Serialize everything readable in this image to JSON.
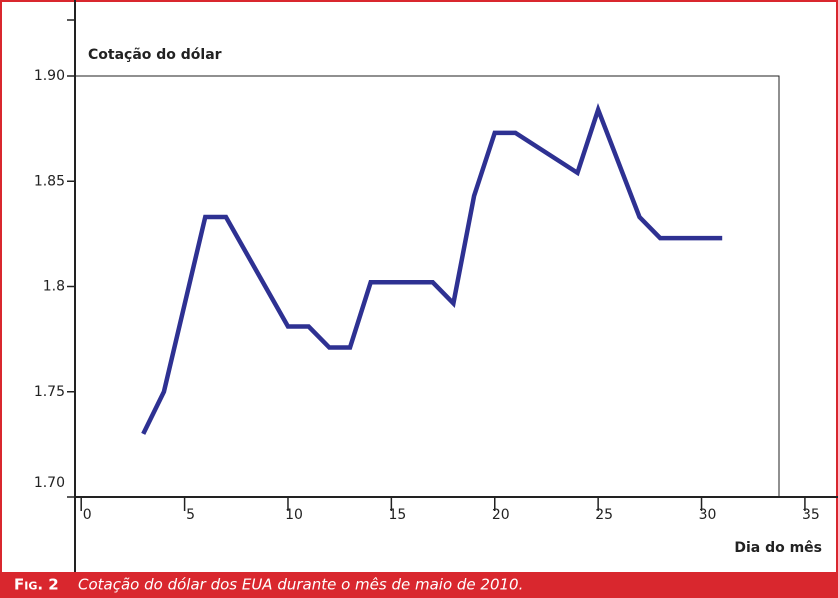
{
  "chart_data": {
    "type": "line",
    "title": "Cotação do dólar",
    "xlabel": "Dia do mês",
    "caption": {
      "label": "Fig. 2",
      "text": "Cotação do dólar dos EUA durante o mês de maio de 2010."
    },
    "x": [
      3,
      4,
      6,
      7,
      10,
      11,
      12,
      13,
      14,
      17,
      18,
      19,
      20,
      21,
      24,
      25,
      27,
      28,
      31
    ],
    "series": [
      {
        "name": "Cotação do dólar",
        "color": "#2e3192",
        "values": [
          1.73,
          1.75,
          1.833,
          1.833,
          1.781,
          1.781,
          1.771,
          1.771,
          1.802,
          1.802,
          1.792,
          1.843,
          1.873,
          1.873,
          1.854,
          1.884,
          1.833,
          1.823,
          1.823
        ]
      }
    ],
    "xlim": [
      -0.3,
      36.6
    ],
    "xticks": [
      0,
      5,
      10,
      15,
      20,
      25,
      30,
      35
    ],
    "ylim": [
      1.7,
      1.9
    ],
    "yticks": [
      {
        "value": 1.7,
        "label": "1.70"
      },
      1.75,
      1.8,
      1.85,
      {
        "value": 1.9,
        "label": "1.90"
      }
    ]
  }
}
